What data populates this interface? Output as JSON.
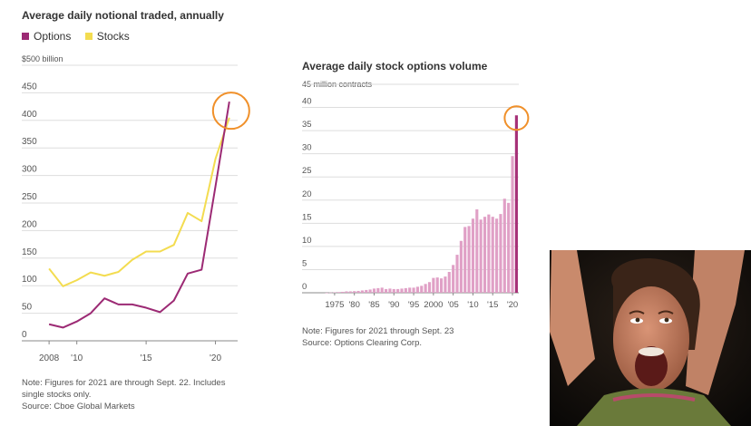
{
  "chart_data": [
    {
      "type": "line",
      "title": "Average daily notional traded, annually",
      "unit_label": "$500 billion",
      "legend": [
        "Options",
        "Stocks"
      ],
      "x": [
        2008,
        2009,
        2010,
        2011,
        2012,
        2013,
        2014,
        2015,
        2016,
        2017,
        2018,
        2019,
        2020,
        2021
      ],
      "x_ticks": [
        "2008",
        "'10",
        "'15",
        "'20"
      ],
      "x_tick_values": [
        2008,
        2010,
        2015,
        2020
      ],
      "y_ticks": [
        "0",
        "50",
        "100",
        "150",
        "200",
        "250",
        "300",
        "350",
        "400",
        "450"
      ],
      "y_tick_values": [
        0,
        50,
        100,
        150,
        200,
        250,
        300,
        350,
        400,
        450
      ],
      "ylim": [
        0,
        500
      ],
      "xlim": [
        2007.6,
        2021.6
      ],
      "series": [
        {
          "name": "Options",
          "color": "#9c2a74",
          "values": [
            30,
            24,
            35,
            50,
            77,
            66,
            66,
            60,
            52,
            73,
            122,
            129,
            280,
            434
          ]
        },
        {
          "name": "Stocks",
          "color": "#f3dc50",
          "values": [
            131,
            99,
            110,
            124,
            118,
            125,
            147,
            162,
            162,
            174,
            232,
            217,
            330,
            405
          ]
        }
      ],
      "highlight": {
        "color": "#f0902a",
        "year": 2021
      },
      "notes": [
        "Note: Figures for 2021 are through Sept. 22. Includes",
        "single stocks only.",
        "Source: Cboe Global Markets"
      ],
      "grid": true
    },
    {
      "type": "bar",
      "title": "Average daily stock options volume",
      "unit_label": "45 million contracts",
      "x": [
        1973,
        1974,
        1975,
        1976,
        1977,
        1978,
        1979,
        1980,
        1981,
        1982,
        1983,
        1984,
        1985,
        1986,
        1987,
        1988,
        1989,
        1990,
        1991,
        1992,
        1993,
        1994,
        1995,
        1996,
        1997,
        1998,
        1999,
        2000,
        2001,
        2002,
        2003,
        2004,
        2005,
        2006,
        2007,
        2008,
        2009,
        2010,
        2011,
        2012,
        2013,
        2014,
        2015,
        2016,
        2017,
        2018,
        2019,
        2020,
        2021
      ],
      "values": [
        0.01,
        0.05,
        0.1,
        0.15,
        0.2,
        0.3,
        0.3,
        0.35,
        0.4,
        0.5,
        0.6,
        0.7,
        0.9,
        1.0,
        1.1,
        0.8,
        0.9,
        0.8,
        0.8,
        0.9,
        1.0,
        1.1,
        1.1,
        1.3,
        1.5,
        1.9,
        2.3,
        3.2,
        3.3,
        3.1,
        3.5,
        4.5,
        6.0,
        8.2,
        11.2,
        14.2,
        14.4,
        16.0,
        18.0,
        15.8,
        16.4,
        16.9,
        16.4,
        16.0,
        17.0,
        20.3,
        19.4,
        29.5,
        38.3
      ],
      "x_ticks": [
        "1975",
        "'80",
        "'85",
        "'90",
        "'95",
        "2000",
        "'05",
        "'10",
        "'15",
        "'20"
      ],
      "x_tick_values": [
        1975,
        1980,
        1985,
        1990,
        1995,
        2000,
        2005,
        2010,
        2015,
        2020
      ],
      "y_ticks": [
        "0",
        "5",
        "10",
        "15",
        "20",
        "25",
        "30",
        "35",
        "40"
      ],
      "y_tick_values": [
        0,
        5,
        10,
        15,
        20,
        25,
        30,
        35,
        40
      ],
      "ylim": [
        0,
        45
      ],
      "bar_color": "#e0a0c6",
      "highlight_bar_color": "#a63077",
      "highlight": {
        "color": "#f0902a",
        "year": 2021
      },
      "notes": [
        "Note: Figures for 2021 through Sept. 23",
        "Source: Options Clearing Corp."
      ],
      "grid": true
    }
  ],
  "photo": {
    "description_icon": "cheering-woman-photo"
  }
}
